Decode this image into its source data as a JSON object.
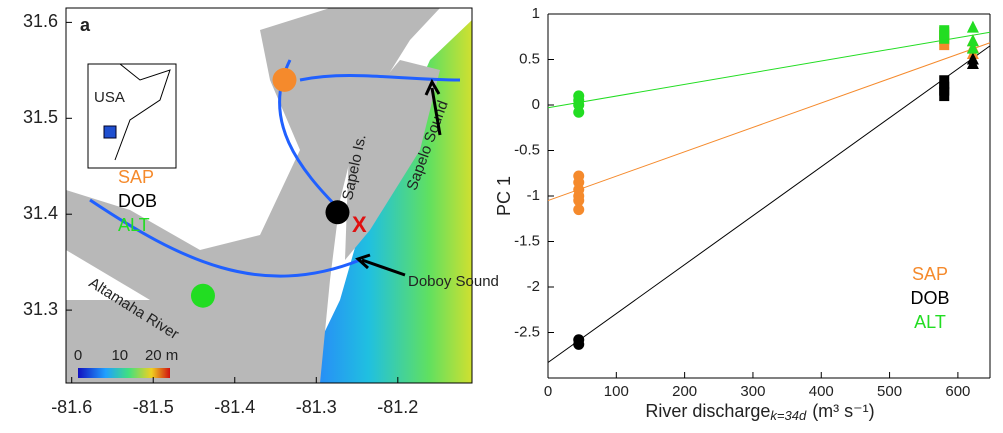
{
  "chart_data": [
    {
      "type": "map",
      "panel_label": "a",
      "xlim": [
        -81.607,
        -81.109
      ],
      "xticks": [
        -81.6,
        -81.5,
        -81.4,
        -81.3,
        -81.2
      ],
      "ylim": [
        31.224,
        31.615
      ],
      "yticks": [
        31.3,
        31.4,
        31.5,
        31.6
      ],
      "inset_label": "USA",
      "stations": [
        {
          "name": "SAP",
          "color": "#f58a2c",
          "x": -81.339,
          "y": 31.54
        },
        {
          "name": "DOB",
          "color": "#000000",
          "x": -81.274,
          "y": 31.402
        },
        {
          "name": "ALT",
          "color": "#22dd22",
          "x": -81.439,
          "y": 31.315
        }
      ],
      "annotations": [
        "Sapelo Is.",
        "Sapelo Sound",
        "Doboy Sound",
        "Altamaha River",
        "X"
      ],
      "colorbar": {
        "lim": [
          0,
          22
        ],
        "ticks": [
          0,
          10,
          {
            "value": 20,
            "label": "20 m"
          }
        ]
      }
    },
    {
      "type": "scatter",
      "xlabel": {
        "text": "River discharge",
        "subscript": "k=34d",
        "units": "(m³ s⁻¹)"
      },
      "ylabel": "PC 1",
      "xlim": [
        0,
        647
      ],
      "xticks": [
        0,
        100,
        200,
        300,
        400,
        500,
        600
      ],
      "ylim": [
        -3,
        1
      ],
      "yticks": [
        -2.5,
        -2,
        -1.5,
        -1,
        -0.5,
        0,
        0.5,
        1
      ],
      "legend": "lower right",
      "series": [
        {
          "name": "SAP",
          "color": "#f58a2c",
          "x": [
            45,
            45,
            45,
            45,
            45,
            45,
            580,
            580,
            580,
            622,
            622,
            622
          ],
          "values": [
            -0.78,
            -0.85,
            -0.93,
            -1.0,
            -1.05,
            -1.15,
            0.68,
            0.74,
            0.78,
            0.56,
            0.63,
            0.7
          ],
          "markers": [
            "circle",
            "circle",
            "circle",
            "circle",
            "circle",
            "circle",
            "square",
            "square",
            "square",
            "triangle",
            "triangle",
            "triangle"
          ]
        },
        {
          "name": "DOB",
          "color": "#000000",
          "x": [
            45,
            45,
            580,
            580,
            580,
            622,
            622
          ],
          "values": [
            -2.58,
            -2.63,
            0.12,
            0.18,
            0.25,
            0.45,
            0.5
          ],
          "markers": [
            "circle",
            "circle",
            "square",
            "square",
            "square",
            "triangle",
            "triangle"
          ]
        },
        {
          "name": "ALT",
          "color": "#22dd22",
          "x": [
            45,
            45,
            45,
            45,
            580,
            580,
            622,
            622,
            622
          ],
          "values": [
            -0.08,
            0,
            0.05,
            0.1,
            0.75,
            0.8,
            0.62,
            0.7,
            0.85
          ],
          "markers": [
            "circle",
            "circle",
            "circle",
            "circle",
            "square",
            "square",
            "triangle",
            "triangle",
            "triangle"
          ]
        }
      ],
      "fits": [
        {
          "color": "#f58a2c",
          "x": [
            0,
            647
          ],
          "y": [
            -1.05,
            0.684
          ]
        },
        {
          "color": "#000000",
          "x": [
            0,
            647
          ],
          "y": [
            -2.83,
            0.65
          ]
        },
        {
          "color": "#22dd22",
          "x": [
            0,
            647
          ],
          "y": [
            -0.03,
            0.8
          ]
        }
      ]
    }
  ]
}
